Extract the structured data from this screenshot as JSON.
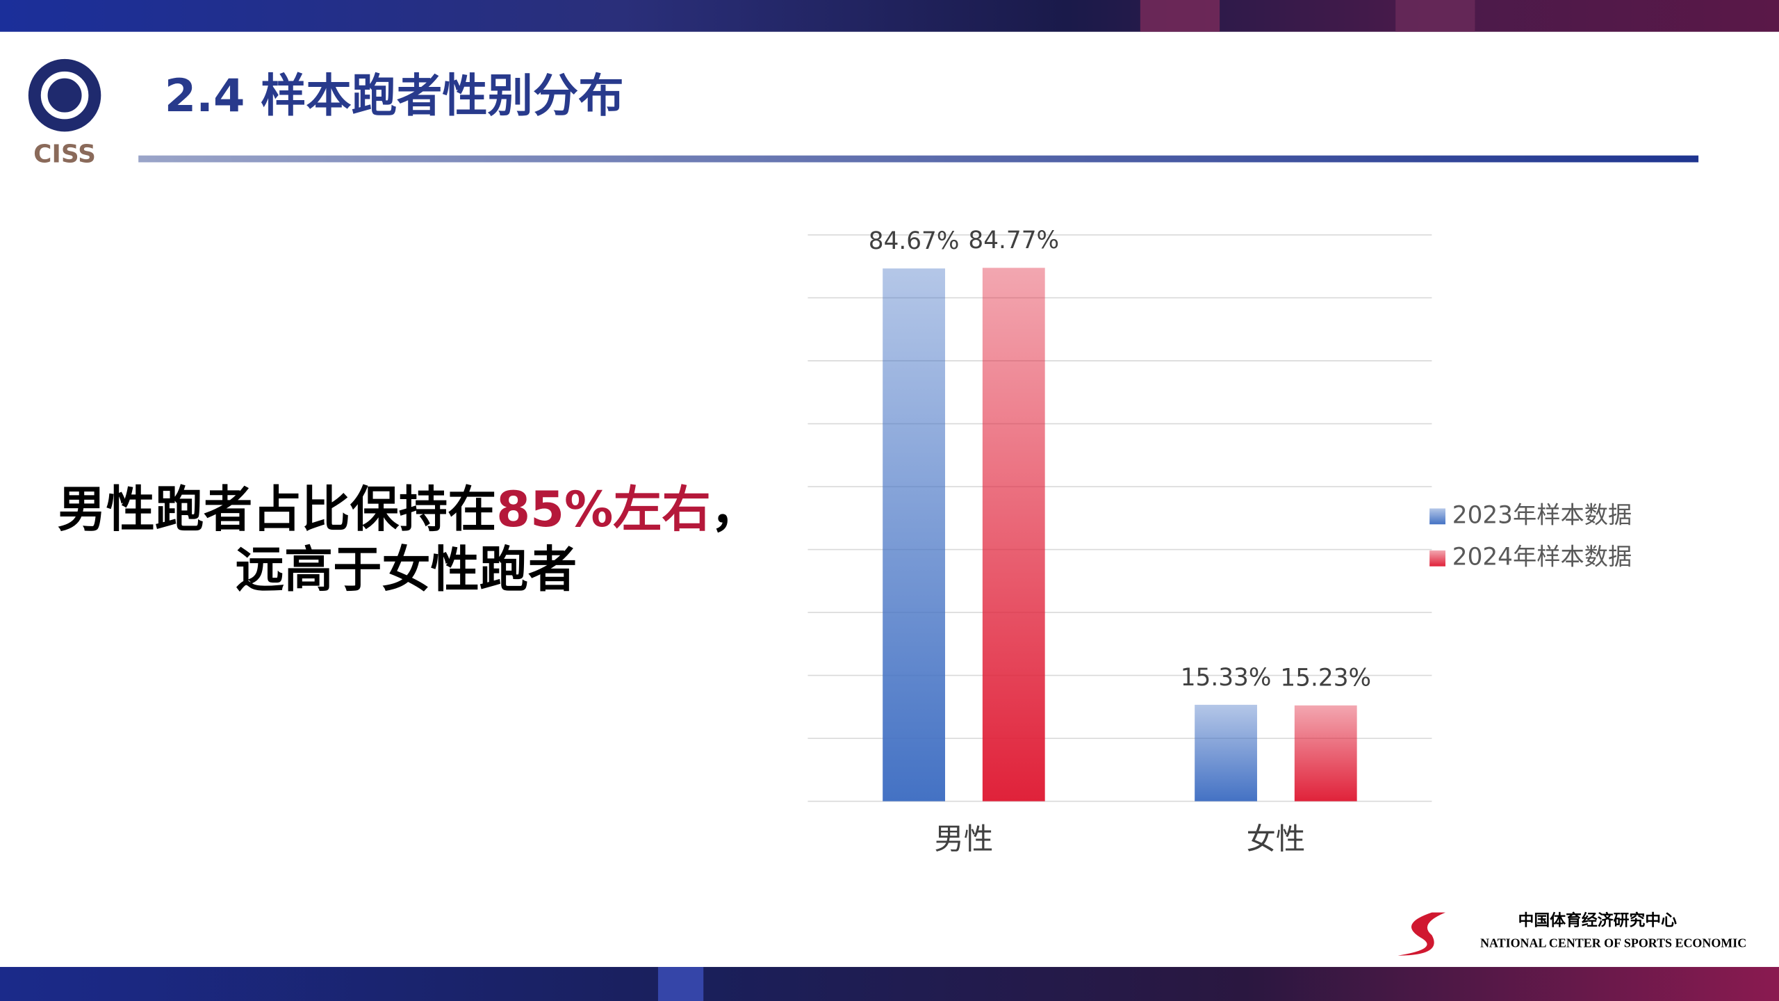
{
  "header": {
    "logo_text": "CISS",
    "title": "2.4 样本跑者性别分布"
  },
  "statement": {
    "line1": [
      {
        "text": "男性跑者占比保持在"
      },
      {
        "text": "85%左右",
        "color": "#b5183a"
      },
      {
        "text": "，"
      }
    ],
    "line2": "远高于女性跑者"
  },
  "footer": {
    "name_cn": "中国体育经济研究中心",
    "name_en": "NATIONAL CENTER OF SPORTS ECONOMIC"
  },
  "chart_data": {
    "type": "bar",
    "categories": [
      "男性",
      "女性"
    ],
    "series": [
      {
        "name": "2023年样本数据",
        "color": "#4472c4",
        "values": [
          84.67,
          15.33
        ],
        "value_labels": [
          "84.67%",
          "15.33%"
        ]
      },
      {
        "name": "2024年样本数据",
        "color": "#e0223a",
        "values": [
          84.77,
          15.23
        ],
        "value_labels": [
          "84.77%",
          "15.23%"
        ]
      }
    ],
    "ylim": [
      0,
      90
    ],
    "yticks": [
      0,
      10,
      20,
      30,
      40,
      50,
      60,
      70,
      80,
      90
    ],
    "grid": true,
    "legend": "right"
  }
}
